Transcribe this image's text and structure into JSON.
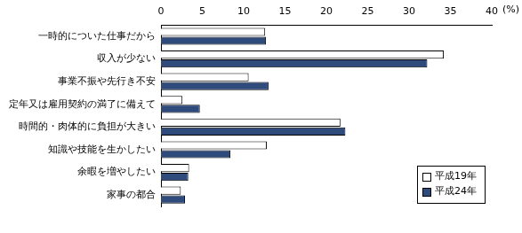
{
  "chart_data": {
    "type": "bar",
    "orientation": "horizontal",
    "xlabel": "(%)",
    "categories": [
      "一時的についた仕事だから",
      "収入が少ない",
      "事業不振や先行き不安",
      "定年又は雇用契約の満了に備えて",
      "時間的・肉体的に負担が大きい",
      "知識や技能を生かしたい",
      "余暇を増やしたい",
      "家事の都合"
    ],
    "series": [
      {
        "name": "平成19年",
        "color": "#ffffff",
        "values": [
          12.6,
          34.2,
          10.6,
          2.6,
          21.7,
          12.8,
          3.4,
          2.4
        ]
      },
      {
        "name": "平成24年",
        "color": "#2f4b7c",
        "values": [
          12.7,
          32.2,
          13.0,
          4.7,
          22.3,
          8.4,
          3.3,
          2.9
        ]
      }
    ],
    "xlim": [
      0,
      40
    ],
    "xticks": [
      0,
      5,
      10,
      15,
      20,
      25,
      30,
      35,
      40
    ],
    "grid": false,
    "legend": "lower right"
  }
}
